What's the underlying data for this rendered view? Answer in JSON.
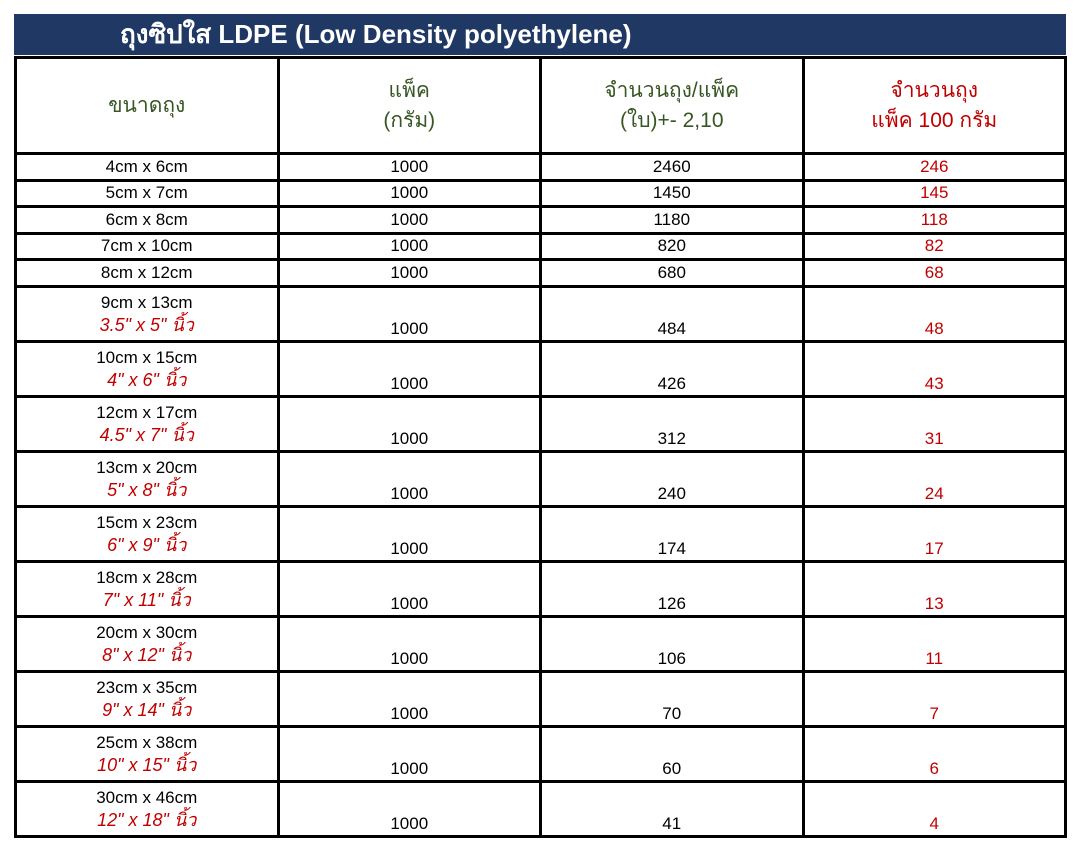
{
  "title": "ถุงซิปใส LDPE (Low Density polyethylene)",
  "headers": {
    "size": "ขนาดถุง",
    "pack_line1": "แพ็ค",
    "pack_line2": "(กรัม)",
    "count_line1": "จำนวนถุง/แพ็ค",
    "count_line2": "(ใบ)+- 2,10",
    "per100_line1": "จำนวนถุง",
    "per100_line2": "แพ็ค 100 กรัม"
  },
  "rows": [
    {
      "size": "4cm x 6cm",
      "inch": "",
      "pack": "1000",
      "count": "2460",
      "per100": "246"
    },
    {
      "size": "5cm x 7cm",
      "inch": "",
      "pack": "1000",
      "count": "1450",
      "per100": "145"
    },
    {
      "size": "6cm x 8cm",
      "inch": "",
      "pack": "1000",
      "count": "1180",
      "per100": "118"
    },
    {
      "size": "7cm x 10cm",
      "inch": "",
      "pack": "1000",
      "count": "820",
      "per100": "82"
    },
    {
      "size": "8cm x 12cm",
      "inch": "",
      "pack": "1000",
      "count": "680",
      "per100": "68"
    },
    {
      "size": "9cm x 13cm",
      "inch": "3.5\" x 5\" นิ้ว",
      "pack": "1000",
      "count": "484",
      "per100": "48"
    },
    {
      "size": "10cm x 15cm",
      "inch": "4\" x 6\" นิ้ว",
      "pack": "1000",
      "count": "426",
      "per100": "43"
    },
    {
      "size": "12cm x 17cm",
      "inch": "4.5\" x 7\" นิ้ว",
      "pack": "1000",
      "count": "312",
      "per100": "31"
    },
    {
      "size": "13cm x 20cm",
      "inch": "5\" x 8\" นิ้ว",
      "pack": "1000",
      "count": "240",
      "per100": "24"
    },
    {
      "size": "15cm x 23cm",
      "inch": "6\" x 9\" นิ้ว",
      "pack": "1000",
      "count": "174",
      "per100": "17"
    },
    {
      "size": "18cm x 28cm",
      "inch": "7\" x 11\" นิ้ว",
      "pack": "1000",
      "count": "126",
      "per100": "13"
    },
    {
      "size": "20cm x 30cm",
      "inch": "8\" x 12\" นิ้ว",
      "pack": "1000",
      "count": "106",
      "per100": "11"
    },
    {
      "size": "23cm x 35cm",
      "inch": "9\" x 14\" นิ้ว",
      "pack": "1000",
      "count": "70",
      "per100": "7"
    },
    {
      "size": "25cm x 38cm",
      "inch": "10\" x 15\" นิ้ว",
      "pack": "1000",
      "count": "60",
      "per100": "6"
    },
    {
      "size": "30cm x 46cm",
      "inch": "12\" x 18\" นิ้ว",
      "pack": "1000",
      "count": "41",
      "per100": "4"
    }
  ]
}
